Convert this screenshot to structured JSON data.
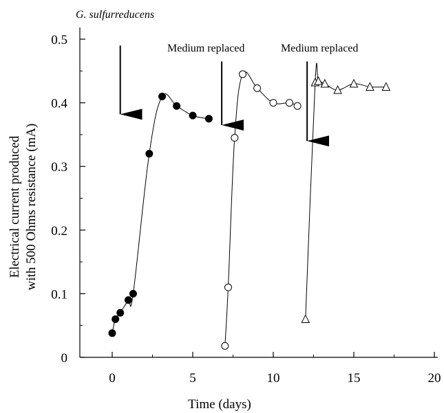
{
  "chart_data": {
    "type": "scatter",
    "xlabel": "Time (days)",
    "ylabel_lines": [
      "Electrical current produced",
      "with 500 Ohms resistance (mA)"
    ],
    "xlim": [
      -2,
      20
    ],
    "ylim": [
      0,
      0.5
    ],
    "x_ticks": [
      0,
      5,
      10,
      15,
      20
    ],
    "y_ticks": [
      0,
      0.1,
      0.2,
      0.3,
      0.4,
      0.5
    ],
    "x_tick_labels": [
      "0",
      "5",
      "10",
      "15",
      "20"
    ],
    "y_tick_labels": [
      "0",
      "0.1",
      "0.2",
      "0.3",
      "0.4",
      "0.5"
    ],
    "grid": false,
    "series": [
      {
        "marker": "filled-circle",
        "x": [
          0,
          0.2,
          0.5,
          1,
          1.3,
          2.3,
          3.1,
          4,
          5,
          6
        ],
        "y": [
          0.038,
          0.06,
          0.07,
          0.09,
          0.1,
          0.32,
          0.41,
          0.395,
          0.38,
          0.375
        ]
      },
      {
        "marker": "open-circle",
        "x": [
          7,
          7.2,
          7.6,
          8.1,
          9,
          10,
          11,
          11.5
        ],
        "y": [
          0.018,
          0.11,
          0.345,
          0.445,
          0.423,
          0.4,
          0.4,
          0.395
        ]
      },
      {
        "marker": "open-triangle",
        "x": [
          12,
          12.6,
          12.8,
          13.2,
          14,
          15,
          16,
          17
        ],
        "y": [
          0.06,
          0.432,
          0.434,
          0.43,
          0.42,
          0.43,
          0.425,
          0.425
        ]
      }
    ],
    "annotations": [
      {
        "text": "G. sulfurreducens",
        "italic": true,
        "arrow_x": 0.5,
        "arrow_top_y": 0.49,
        "arrow_tip_y": 0.382
      },
      {
        "text": "Medium replaced",
        "italic": false,
        "arrow_x": 6.8,
        "arrow_top_y": 0.465,
        "arrow_tip_y": 0.365
      },
      {
        "text": "Medium replaced",
        "italic": false,
        "arrow_x": 12.1,
        "arrow_top_y": 0.465,
        "arrow_tip_y": 0.34
      }
    ]
  }
}
